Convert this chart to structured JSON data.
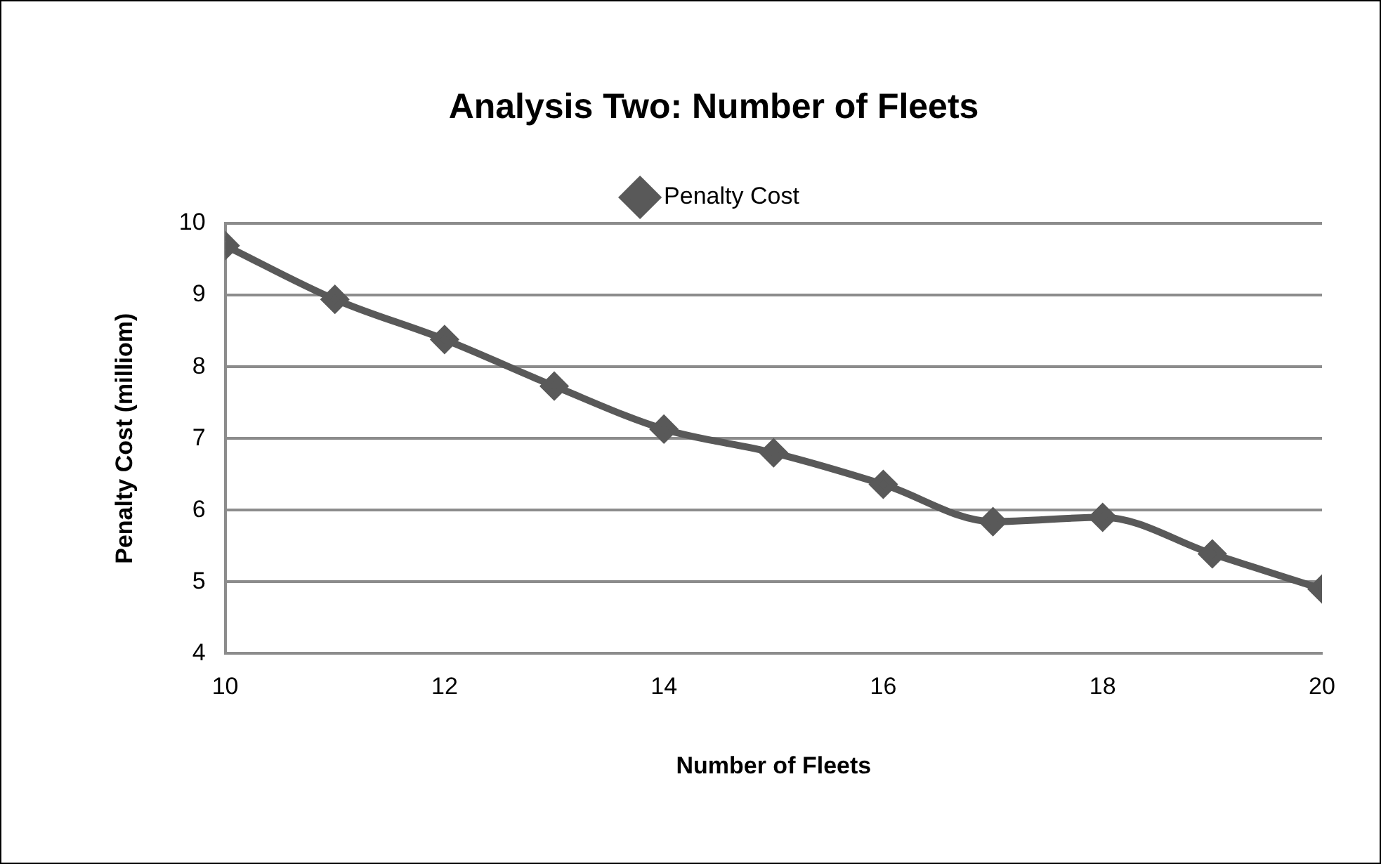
{
  "chart_data": {
    "type": "line",
    "title": "Analysis Two: Number of Fleets",
    "xlabel": "Number of Fleets",
    "ylabel": "Penalty Cost (milliom)",
    "x": [
      10,
      11,
      12,
      13,
      14,
      15,
      16,
      17,
      18,
      19,
      20
    ],
    "series": [
      {
        "name": "Penalty Cost",
        "color": "#595959",
        "values": [
          9.69,
          8.94,
          8.38,
          7.73,
          7.13,
          6.8,
          6.36,
          5.84,
          5.9,
          5.39,
          4.9
        ]
      }
    ],
    "xlim": [
      10,
      20
    ],
    "xticks": [
      10,
      12,
      14,
      16,
      18,
      20
    ],
    "ylim": [
      4,
      10
    ],
    "yticks": [
      4,
      5,
      6,
      7,
      8,
      9,
      10
    ],
    "grid": "y",
    "legend": "top",
    "marker": "diamond",
    "line_style": "solid"
  }
}
